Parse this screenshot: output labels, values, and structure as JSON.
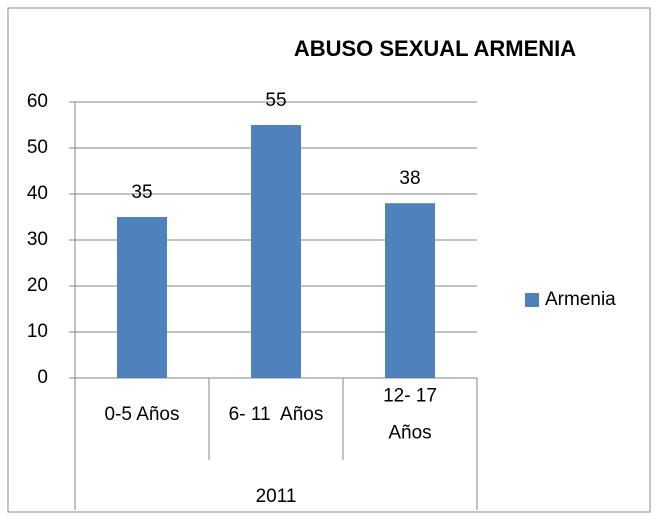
{
  "chart_data": {
    "type": "bar",
    "title": "ABUSO SEXUAL ARMENIA",
    "categories": [
      [
        "0-5 Años"
      ],
      [
        "6- 11  Años"
      ],
      [
        "12- 17",
        "Años"
      ]
    ],
    "group_label": "2011",
    "series": [
      {
        "name": "Armenia",
        "color": "#4f81bd",
        "values": [
          35,
          55,
          38
        ]
      }
    ],
    "ylim": [
      0,
      60
    ],
    "yticks": [
      0,
      10,
      20,
      30,
      40,
      50,
      60
    ],
    "grid": true,
    "legend": "right"
  }
}
